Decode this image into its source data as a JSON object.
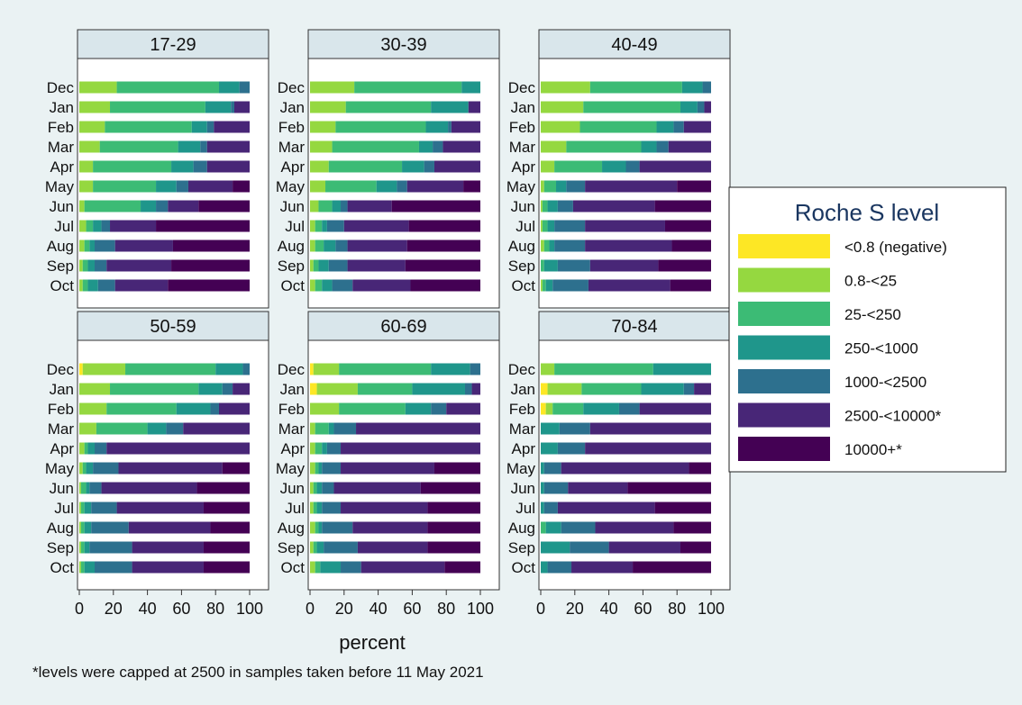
{
  "chart_data": {
    "type": "bar",
    "layout": "stacked-horizontal-percent",
    "xlabel": "percent",
    "xlim": [
      0,
      100
    ],
    "xticks": [
      "0",
      "20",
      "40",
      "60",
      "80",
      "100"
    ],
    "categories": [
      "Dec",
      "Jan",
      "Feb",
      "Mar",
      "Apr",
      "May",
      "Jun",
      "Jul",
      "Aug",
      "Sep",
      "Oct"
    ],
    "footnote": "*levels were capped at 2500 in samples taken before 11 May 2021",
    "legend": {
      "title": "Roche S level",
      "placement": "right",
      "levels": [
        {
          "name": "<0.8 (negative)",
          "color": "#fde725"
        },
        {
          "name": "0.8-<25",
          "color": "#95d840"
        },
        {
          "name": "25-<250",
          "color": "#3cbb75"
        },
        {
          "name": "250-<1000",
          "color": "#1f968b"
        },
        {
          "name": "1000-<2500",
          "color": "#2d708e"
        },
        {
          "name": "2500-<10000*",
          "color": "#482677"
        },
        {
          "name": "10000+*",
          "color": "#440154"
        }
      ]
    },
    "panels": [
      {
        "title": "17-29",
        "values": [
          [
            0,
            22,
            60,
            12,
            6,
            0,
            0
          ],
          [
            0,
            18,
            56,
            15,
            2,
            9,
            0
          ],
          [
            0,
            15,
            51,
            9,
            4,
            21,
            0
          ],
          [
            0,
            12,
            46,
            13,
            4,
            25,
            0
          ],
          [
            0,
            8,
            46,
            13,
            8,
            25,
            0
          ],
          [
            0,
            8,
            37,
            12,
            7,
            26,
            10
          ],
          [
            0,
            3,
            33,
            9,
            7,
            18,
            30
          ],
          [
            0,
            4,
            4,
            5,
            5,
            27,
            55
          ],
          [
            0,
            3,
            3,
            3,
            12,
            34,
            45
          ],
          [
            0,
            2,
            3,
            4,
            7,
            38,
            46
          ],
          [
            0,
            2,
            3,
            6,
            10,
            31,
            48
          ]
        ]
      },
      {
        "title": "30-39",
        "values": [
          [
            0,
            26,
            63,
            11,
            0,
            0,
            0
          ],
          [
            0,
            21,
            50,
            22,
            0,
            7,
            0
          ],
          [
            0,
            15,
            53,
            13,
            2,
            17,
            0
          ],
          [
            0,
            13,
            51,
            8,
            6,
            22,
            0
          ],
          [
            0,
            11,
            43,
            13,
            6,
            27,
            0
          ],
          [
            0,
            9,
            30,
            12,
            6,
            33,
            10
          ],
          [
            0,
            5,
            8,
            5,
            4,
            26,
            52
          ],
          [
            0,
            3,
            4,
            3,
            10,
            38,
            42
          ],
          [
            0,
            3,
            5,
            7,
            7,
            35,
            43
          ],
          [
            0,
            2,
            3,
            6,
            11,
            34,
            44
          ],
          [
            0,
            3,
            4,
            6,
            12,
            34,
            41
          ]
        ]
      },
      {
        "title": "40-49",
        "values": [
          [
            0,
            29,
            54,
            12,
            5,
            0,
            0
          ],
          [
            0,
            25,
            57,
            10,
            4,
            4,
            0
          ],
          [
            0,
            23,
            45,
            10,
            6,
            16,
            0
          ],
          [
            0,
            15,
            44,
            9,
            7,
            25,
            0
          ],
          [
            0,
            8,
            28,
            14,
            8,
            42,
            0
          ],
          [
            0,
            2,
            7,
            6,
            11,
            54,
            20
          ],
          [
            0,
            1,
            3,
            6,
            9,
            48,
            33
          ],
          [
            0,
            1,
            3,
            4,
            18,
            47,
            27
          ],
          [
            0,
            2,
            3,
            3,
            18,
            51,
            23
          ],
          [
            0,
            0,
            2,
            8,
            19,
            40,
            31
          ],
          [
            0,
            1,
            2,
            4,
            21,
            48,
            24
          ]
        ]
      },
      {
        "title": "50-59",
        "values": [
          [
            2,
            25,
            53,
            16,
            4,
            0,
            0
          ],
          [
            0,
            18,
            52,
            14,
            6,
            10,
            0
          ],
          [
            0,
            16,
            41,
            20,
            5,
            18,
            0
          ],
          [
            0,
            10,
            30,
            11,
            10,
            39,
            0
          ],
          [
            0,
            3,
            2,
            4,
            7,
            84,
            0
          ],
          [
            0,
            2,
            2,
            4,
            15,
            61,
            16
          ],
          [
            0,
            1,
            3,
            2,
            7,
            56,
            31
          ],
          [
            0,
            1,
            2,
            4,
            15,
            51,
            27
          ],
          [
            0,
            1,
            2,
            4,
            22,
            48,
            23
          ],
          [
            0,
            1,
            2,
            3,
            25,
            42,
            27
          ],
          [
            0,
            1,
            2,
            6,
            22,
            42,
            27
          ]
        ]
      },
      {
        "title": "60-69",
        "values": [
          [
            2,
            15,
            54,
            23,
            6,
            0,
            0
          ],
          [
            4,
            24,
            32,
            31,
            4,
            5,
            0
          ],
          [
            0,
            17,
            39,
            15,
            9,
            20,
            0
          ],
          [
            0,
            3,
            8,
            3,
            13,
            73,
            0
          ],
          [
            0,
            3,
            4,
            3,
            8,
            82,
            0
          ],
          [
            0,
            3,
            2,
            2,
            11,
            55,
            27
          ],
          [
            0,
            2,
            2,
            3,
            7,
            51,
            35
          ],
          [
            0,
            2,
            2,
            3,
            11,
            51,
            31
          ],
          [
            0,
            3,
            2,
            2,
            18,
            44,
            31
          ],
          [
            0,
            2,
            2,
            4,
            20,
            41,
            31
          ],
          [
            0,
            3,
            3,
            12,
            12,
            49,
            21
          ]
        ]
      },
      {
        "title": "70-84",
        "values": [
          [
            0,
            8,
            58,
            34,
            0,
            0,
            0
          ],
          [
            4,
            20,
            35,
            25,
            6,
            10,
            0
          ],
          [
            3,
            4,
            18,
            21,
            12,
            42,
            0
          ],
          [
            0,
            0,
            0,
            11,
            18,
            71,
            0
          ],
          [
            0,
            0,
            0,
            10,
            16,
            74,
            0
          ],
          [
            0,
            0,
            0,
            2,
            10,
            75,
            13
          ],
          [
            0,
            0,
            0,
            2,
            14,
            35,
            49
          ],
          [
            0,
            0,
            0,
            2,
            8,
            57,
            33
          ],
          [
            0,
            0,
            3,
            9,
            20,
            46,
            22
          ],
          [
            0,
            0,
            0,
            17,
            23,
            42,
            18
          ],
          [
            0,
            0,
            0,
            4,
            14,
            36,
            46
          ]
        ]
      }
    ]
  }
}
